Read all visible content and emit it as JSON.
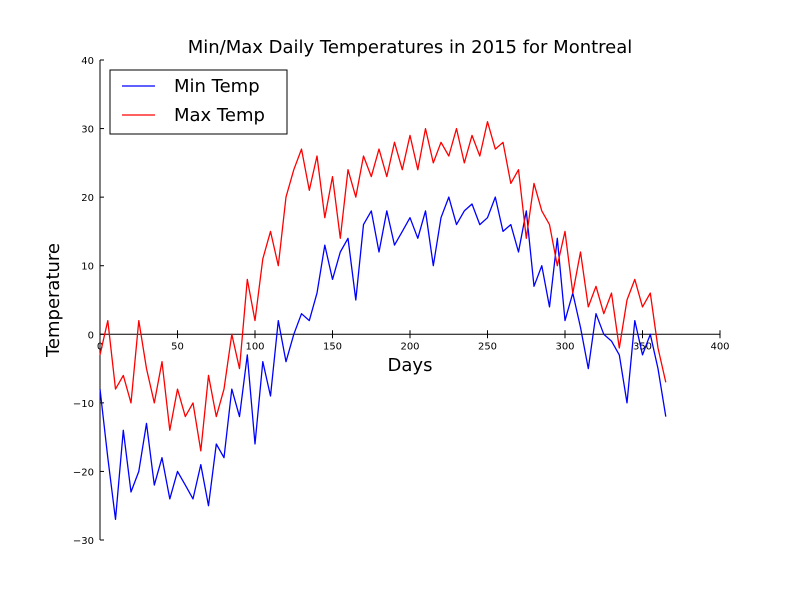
{
  "chart_data": {
    "type": "line",
    "title": "Min/Max Daily Temperatures in 2015 for Montreal",
    "xlabel": "Days",
    "ylabel": "Temperature",
    "xlim": [
      0,
      400
    ],
    "ylim": [
      -30,
      40
    ],
    "xticks": [
      "0",
      "50",
      "100",
      "150",
      "200",
      "250",
      "300",
      "350",
      "400"
    ],
    "yticks": [
      "40",
      "30",
      "20",
      "10",
      "0",
      "−10",
      "−20",
      "−30"
    ],
    "legend": {
      "placement": "top-left"
    },
    "colors": {
      "min": "#0000ff",
      "max": "#ff0000",
      "axis": "#000000"
    },
    "series": [
      {
        "name": "Min Temp",
        "x": [
          0,
          5,
          10,
          15,
          20,
          25,
          30,
          35,
          40,
          45,
          50,
          55,
          60,
          65,
          70,
          75,
          80,
          85,
          90,
          95,
          100,
          105,
          110,
          115,
          120,
          125,
          130,
          135,
          140,
          145,
          150,
          155,
          160,
          165,
          170,
          175,
          180,
          185,
          190,
          195,
          200,
          205,
          210,
          215,
          220,
          225,
          230,
          235,
          240,
          245,
          250,
          255,
          260,
          265,
          270,
          275,
          280,
          285,
          290,
          295,
          300,
          305,
          310,
          315,
          320,
          325,
          330,
          335,
          340,
          345,
          350,
          355,
          360,
          365
        ],
        "y": [
          -8,
          -18,
          -27,
          -14,
          -23,
          -20,
          -13,
          -22,
          -18,
          -24,
          -20,
          -22,
          -24,
          -19,
          -25,
          -16,
          -18,
          -8,
          -12,
          -3,
          -16,
          -4,
          -9,
          2,
          -4,
          0,
          3,
          2,
          6,
          13,
          8,
          12,
          14,
          5,
          16,
          18,
          12,
          18,
          13,
          15,
          17,
          14,
          18,
          10,
          17,
          20,
          16,
          18,
          19,
          16,
          17,
          20,
          15,
          16,
          12,
          18,
          7,
          10,
          4,
          14,
          2,
          6,
          1,
          -5,
          3,
          0,
          -1,
          -3,
          -10,
          2,
          -3,
          0,
          -5,
          -12
        ]
      },
      {
        "name": "Max Temp",
        "x": [
          0,
          5,
          10,
          15,
          20,
          25,
          30,
          35,
          40,
          45,
          50,
          55,
          60,
          65,
          70,
          75,
          80,
          85,
          90,
          95,
          100,
          105,
          110,
          115,
          120,
          125,
          130,
          135,
          140,
          145,
          150,
          155,
          160,
          165,
          170,
          175,
          180,
          185,
          190,
          195,
          200,
          205,
          210,
          215,
          220,
          225,
          230,
          235,
          240,
          245,
          250,
          255,
          260,
          265,
          270,
          275,
          280,
          285,
          290,
          295,
          300,
          305,
          310,
          315,
          320,
          325,
          330,
          335,
          340,
          345,
          350,
          355,
          360,
          365
        ],
        "y": [
          -3,
          2,
          -8,
          -6,
          -10,
          2,
          -5,
          -10,
          -4,
          -14,
          -8,
          -12,
          -10,
          -17,
          -6,
          -12,
          -8,
          0,
          -5,
          8,
          2,
          11,
          15,
          10,
          20,
          24,
          27,
          21,
          26,
          17,
          23,
          14,
          24,
          20,
          26,
          23,
          27,
          23,
          28,
          24,
          29,
          24,
          30,
          25,
          28,
          26,
          30,
          25,
          29,
          26,
          31,
          27,
          28,
          22,
          24,
          14,
          22,
          18,
          16,
          10,
          15,
          6,
          12,
          4,
          7,
          3,
          6,
          -2,
          5,
          8,
          4,
          6,
          -2,
          -7
        ]
      }
    ]
  }
}
